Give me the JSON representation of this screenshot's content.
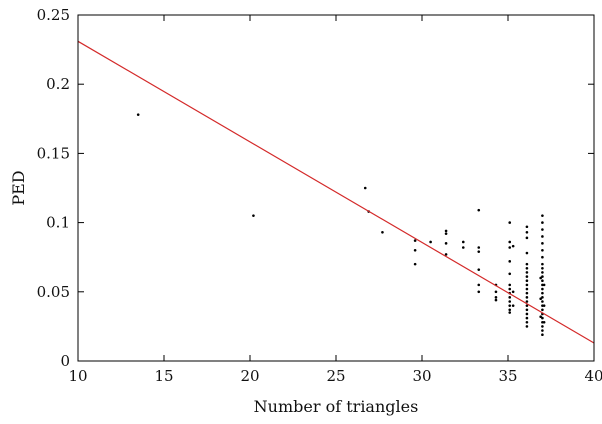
{
  "chart_data": {
    "type": "scatter",
    "title": "",
    "xlabel": "Number of triangles",
    "ylabel": "PED",
    "xlim": [
      10,
      40
    ],
    "ylim": [
      0,
      0.25
    ],
    "x_ticks": [
      10,
      15,
      20,
      25,
      30,
      35,
      40
    ],
    "y_ticks": [
      0,
      0.05,
      0.1,
      0.15,
      0.2,
      0.25
    ],
    "x_tick_labels": [
      "10",
      "15",
      "20",
      "25",
      "30",
      "35",
      "40"
    ],
    "y_tick_labels": [
      "0",
      "0.05",
      "0.1",
      "0.15",
      "0.2",
      "0.25"
    ],
    "grid": false,
    "legend": "none",
    "colors": {
      "points": "#000000",
      "fit_line": "#d42a2a",
      "axes": "#000000"
    },
    "series": [
      {
        "kind": "points",
        "points": [
          [
            13.5,
            0.178
          ],
          [
            20.2,
            0.105
          ],
          [
            26.7,
            0.125
          ],
          [
            26.9,
            0.108
          ],
          [
            27.7,
            0.093
          ],
          [
            29.6,
            0.087
          ],
          [
            29.6,
            0.08
          ],
          [
            29.6,
            0.07
          ],
          [
            30.5,
            0.086
          ],
          [
            31.4,
            0.094
          ],
          [
            31.4,
            0.092
          ],
          [
            31.4,
            0.085
          ],
          [
            31.4,
            0.077
          ],
          [
            32.4,
            0.086
          ],
          [
            32.4,
            0.082
          ],
          [
            33.3,
            0.109
          ],
          [
            33.3,
            0.082
          ],
          [
            33.3,
            0.079
          ],
          [
            33.3,
            0.066
          ],
          [
            33.3,
            0.055
          ],
          [
            33.3,
            0.05
          ],
          [
            34.3,
            0.055
          ],
          [
            34.3,
            0.05
          ],
          [
            34.3,
            0.046
          ],
          [
            34.3,
            0.044
          ],
          [
            35.1,
            0.1
          ],
          [
            35.1,
            0.086
          ],
          [
            35.1,
            0.082
          ],
          [
            35.1,
            0.072
          ],
          [
            35.1,
            0.063
          ],
          [
            35.1,
            0.055
          ],
          [
            35.1,
            0.052
          ],
          [
            35.1,
            0.049
          ],
          [
            35.1,
            0.046
          ],
          [
            35.1,
            0.043
          ],
          [
            35.1,
            0.04
          ],
          [
            35.1,
            0.037
          ],
          [
            35.1,
            0.035
          ],
          [
            35.3,
            0.083
          ],
          [
            35.3,
            0.05
          ],
          [
            35.3,
            0.04
          ],
          [
            36.1,
            0.097
          ],
          [
            36.1,
            0.093
          ],
          [
            36.1,
            0.089
          ],
          [
            36.1,
            0.078
          ],
          [
            36.1,
            0.07
          ],
          [
            36.1,
            0.067
          ],
          [
            36.1,
            0.064
          ],
          [
            36.1,
            0.061
          ],
          [
            36.1,
            0.058
          ],
          [
            36.1,
            0.055
          ],
          [
            36.1,
            0.052
          ],
          [
            36.1,
            0.049
          ],
          [
            36.1,
            0.046
          ],
          [
            36.1,
            0.043
          ],
          [
            36.1,
            0.04
          ],
          [
            36.1,
            0.037
          ],
          [
            36.1,
            0.034
          ],
          [
            36.1,
            0.031
          ],
          [
            36.1,
            0.028
          ],
          [
            36.1,
            0.025
          ],
          [
            37.0,
            0.105
          ],
          [
            37.0,
            0.1
          ],
          [
            37.0,
            0.095
          ],
          [
            37.0,
            0.09
          ],
          [
            37.0,
            0.085
          ],
          [
            37.0,
            0.08
          ],
          [
            37.0,
            0.075
          ],
          [
            37.0,
            0.07
          ],
          [
            37.0,
            0.067
          ],
          [
            37.0,
            0.064
          ],
          [
            37.0,
            0.061
          ],
          [
            37.0,
            0.058
          ],
          [
            37.0,
            0.055
          ],
          [
            37.0,
            0.052
          ],
          [
            37.0,
            0.049
          ],
          [
            37.0,
            0.046
          ],
          [
            37.0,
            0.043
          ],
          [
            37.0,
            0.04
          ],
          [
            37.0,
            0.037
          ],
          [
            37.0,
            0.034
          ],
          [
            37.0,
            0.031
          ],
          [
            37.0,
            0.028
          ],
          [
            37.0,
            0.025
          ],
          [
            37.0,
            0.022
          ],
          [
            37.0,
            0.019
          ],
          [
            36.9,
            0.06
          ],
          [
            36.9,
            0.045
          ],
          [
            36.9,
            0.032
          ],
          [
            37.1,
            0.055
          ],
          [
            37.1,
            0.04
          ],
          [
            37.1,
            0.028
          ]
        ]
      },
      {
        "kind": "fit_line",
        "points": [
          [
            10,
            0.231
          ],
          [
            40,
            0.013
          ]
        ]
      }
    ]
  }
}
